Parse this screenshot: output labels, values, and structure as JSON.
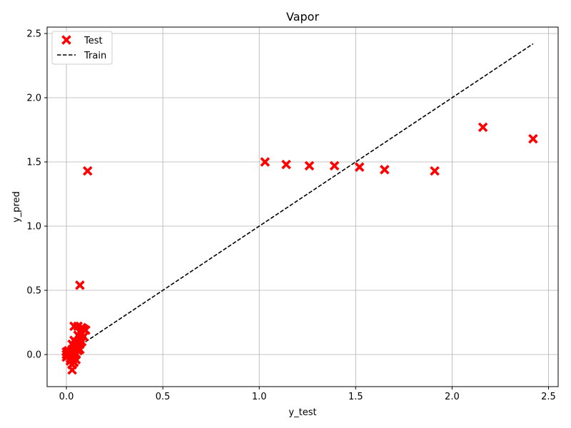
{
  "chart_data": {
    "type": "scatter",
    "title": "Vapor",
    "xlabel": "y_test",
    "ylabel": "y_pred",
    "xlim": [
      -0.1,
      2.55
    ],
    "ylim": [
      -0.25,
      2.55
    ],
    "xticks": [
      0.0,
      0.5,
      1.0,
      1.5,
      2.0,
      2.5
    ],
    "yticks": [
      0.0,
      0.5,
      1.0,
      1.5,
      2.0,
      2.5
    ],
    "xtick_labels": [
      "0.0",
      "0.5",
      "1.0",
      "1.5",
      "2.0",
      "2.5"
    ],
    "ytick_labels": [
      "0.0",
      "0.5",
      "1.0",
      "1.5",
      "2.0",
      "2.5"
    ],
    "grid": true,
    "legend_position": "top-left",
    "series": [
      {
        "name": "Test",
        "kind": "scatter",
        "marker": "x-filled",
        "color": "#ff0000",
        "points": [
          [
            0.11,
            1.43
          ],
          [
            0.07,
            0.54
          ],
          [
            1.03,
            1.5
          ],
          [
            1.14,
            1.48
          ],
          [
            1.26,
            1.47
          ],
          [
            1.39,
            1.47
          ],
          [
            1.52,
            1.46
          ],
          [
            1.65,
            1.44
          ],
          [
            1.91,
            1.43
          ],
          [
            2.16,
            1.77
          ],
          [
            2.42,
            1.68
          ],
          [
            0.0,
            0.0
          ],
          [
            0.0,
            0.02
          ],
          [
            0.0,
            -0.02
          ],
          [
            0.01,
            0.01
          ],
          [
            0.01,
            -0.01
          ],
          [
            0.01,
            0.03
          ],
          [
            0.02,
            0.0
          ],
          [
            0.02,
            -0.03
          ],
          [
            0.02,
            0.02
          ],
          [
            0.02,
            -0.05
          ],
          [
            0.03,
            -0.12
          ],
          [
            0.03,
            -0.08
          ],
          [
            0.03,
            -0.04
          ],
          [
            0.03,
            0.0
          ],
          [
            0.03,
            0.04
          ],
          [
            0.03,
            0.08
          ],
          [
            0.04,
            0.22
          ],
          [
            0.04,
            0.11
          ],
          [
            0.04,
            0.06
          ],
          [
            0.04,
            0.02
          ],
          [
            0.04,
            -0.02
          ],
          [
            0.04,
            -0.06
          ],
          [
            0.05,
            0.09
          ],
          [
            0.05,
            0.05
          ],
          [
            0.05,
            0.0
          ],
          [
            0.05,
            -0.04
          ],
          [
            0.06,
            0.22
          ],
          [
            0.06,
            0.15
          ],
          [
            0.06,
            0.1
          ],
          [
            0.06,
            0.06
          ],
          [
            0.06,
            0.03
          ],
          [
            0.07,
            0.18
          ],
          [
            0.07,
            0.12
          ],
          [
            0.07,
            0.08
          ],
          [
            0.07,
            0.04
          ],
          [
            0.08,
            0.21
          ],
          [
            0.08,
            0.16
          ],
          [
            0.08,
            0.1
          ],
          [
            0.09,
            0.2
          ],
          [
            0.09,
            0.14
          ],
          [
            0.1,
            0.19
          ]
        ]
      },
      {
        "name": "Train",
        "kind": "line",
        "style": "dashed",
        "color": "#000000",
        "points": [
          [
            0.0,
            0.0
          ],
          [
            2.42,
            2.42
          ]
        ]
      }
    ]
  }
}
